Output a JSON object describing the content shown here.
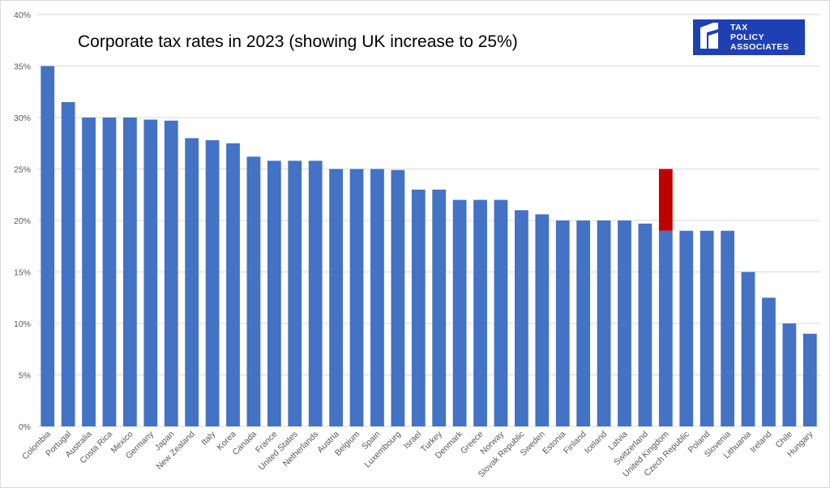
{
  "chart_data": {
    "type": "bar",
    "title": "Corporate tax rates in 2023 (showing UK increase to 25%)",
    "xlabel": "",
    "ylabel": "",
    "ylim": [
      0,
      40
    ],
    "yticks": [
      "0%",
      "5%",
      "10%",
      "15%",
      "20%",
      "25%",
      "30%",
      "35%",
      "40%"
    ],
    "grid": true,
    "bar_color": "#4472c4",
    "highlight_color": "#c00000",
    "categories": [
      "Colombia",
      "Portugal",
      "Australia",
      "Costa Rica",
      "Mexico",
      "Germany",
      "Japan",
      "New Zealand",
      "Italy",
      "Korea",
      "Canada",
      "France",
      "United States",
      "Netherlands",
      "Austria",
      "Belgium",
      "Spain",
      "Luxembourg",
      "Israel",
      "Turkey",
      "Denmark",
      "Greece",
      "Norway",
      "Slovak Republic",
      "Sweden",
      "Estonia",
      "Finland",
      "Iceland",
      "Latvia",
      "Switzerland",
      "United Kingdom",
      "Czech Republic",
      "Poland",
      "Slovenia",
      "Lithuania",
      "Ireland",
      "Chile",
      "Hungary"
    ],
    "series": [
      {
        "values": [
          35,
          31.5,
          30,
          30,
          30,
          29.8,
          29.7,
          28,
          27.8,
          27.5,
          26.2,
          25.8,
          25.8,
          25.8,
          25,
          25,
          25,
          24.9,
          23,
          23,
          22,
          22,
          22,
          21,
          20.6,
          20,
          20,
          20,
          20,
          19.7,
          19,
          19,
          19,
          19,
          15,
          12.5,
          10,
          9
        ]
      }
    ],
    "uk_increase": {
      "category": "United Kingdom",
      "from": 19,
      "to": 25
    }
  },
  "logo": {
    "line1": "TAX",
    "line2": "POLICY",
    "line3": "ASSOCIATES",
    "background": "#1f3fb4"
  }
}
